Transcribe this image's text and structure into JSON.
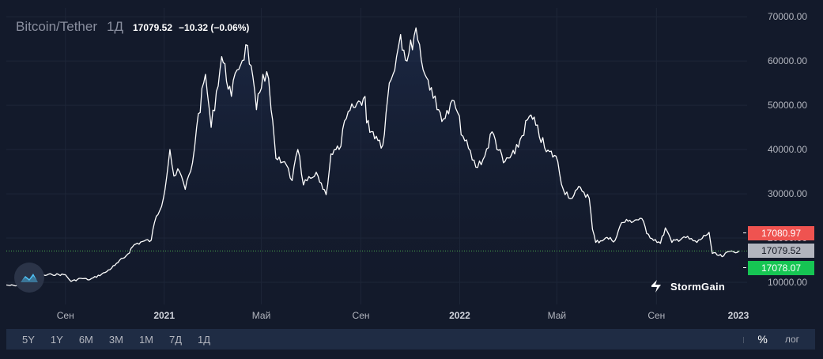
{
  "legend": {
    "symbol": "Bitcoin/Tether",
    "timeframe": "1Д",
    "price": "17079.52",
    "change": "−10.32 (−0.06%)"
  },
  "price_tags": {
    "high": "17080.97",
    "last": "17079.52",
    "low": "17078.07"
  },
  "brand": {
    "name": "StormGain"
  },
  "toolbar": {
    "ranges": [
      "5Y",
      "1Y",
      "6M",
      "3M",
      "1M",
      "7Д",
      "1Д"
    ],
    "percent": "%",
    "log": "лог"
  },
  "colors": {
    "background": "#131a2b",
    "line": "#ffffff",
    "high_tag": "#ef5350",
    "last_tag": "#b2b5be",
    "low_tag": "#16c553",
    "last_price_line": "#4caf50"
  },
  "chart_data": {
    "type": "area",
    "series_points": [
      [
        "2020-06-20",
        9400
      ],
      [
        "2020-07-01",
        9200
      ],
      [
        "2020-07-10",
        9300
      ],
      [
        "2020-07-20",
        9200
      ],
      [
        "2020-08-01",
        11400
      ],
      [
        "2020-08-15",
        11800
      ],
      [
        "2020-09-01",
        11700
      ],
      [
        "2020-09-08",
        10200
      ],
      [
        "2020-09-20",
        10900
      ],
      [
        "2020-10-01",
        10600
      ],
      [
        "2020-10-20",
        12200
      ],
      [
        "2020-11-01",
        13800
      ],
      [
        "2020-11-15",
        16000
      ],
      [
        "2020-11-25",
        18500
      ],
      [
        "2020-12-05",
        19200
      ],
      [
        "2020-12-16",
        19500
      ],
      [
        "2020-12-20",
        23500
      ],
      [
        "2020-12-31",
        29000
      ],
      [
        "2021-01-08",
        40000
      ],
      [
        "2021-01-13",
        34000
      ],
      [
        "2021-01-20",
        35000
      ],
      [
        "2021-01-27",
        31000
      ],
      [
        "2021-02-05",
        37000
      ],
      [
        "2021-02-10",
        45000
      ],
      [
        "2021-02-21",
        57000
      ],
      [
        "2021-02-28",
        45000
      ],
      [
        "2021-03-13",
        61000
      ],
      [
        "2021-03-25",
        52000
      ],
      [
        "2021-04-01",
        58000
      ],
      [
        "2021-04-14",
        63500
      ],
      [
        "2021-04-25",
        49000
      ],
      [
        "2021-05-03",
        57000
      ],
      [
        "2021-05-10",
        56000
      ],
      [
        "2021-05-13",
        49000
      ],
      [
        "2021-05-19",
        38000
      ],
      [
        "2021-05-25",
        37000
      ],
      [
        "2021-06-01",
        36500
      ],
      [
        "2021-06-08",
        33000
      ],
      [
        "2021-06-15",
        40000
      ],
      [
        "2021-06-22",
        32000
      ],
      [
        "2021-07-01",
        33500
      ],
      [
        "2021-07-10",
        34000
      ],
      [
        "2021-07-20",
        29800
      ],
      [
        "2021-07-26",
        39000
      ],
      [
        "2021-08-05",
        40000
      ],
      [
        "2021-08-14",
        47000
      ],
      [
        "2021-08-23",
        49500
      ],
      [
        "2021-09-06",
        52000
      ],
      [
        "2021-09-08",
        46000
      ],
      [
        "2021-09-20",
        43000
      ],
      [
        "2021-09-28",
        41000
      ],
      [
        "2021-10-06",
        55000
      ],
      [
        "2021-10-15",
        61000
      ],
      [
        "2021-10-20",
        66000
      ],
      [
        "2021-10-28",
        60000
      ],
      [
        "2021-11-08",
        67500
      ],
      [
        "2021-11-19",
        57000
      ],
      [
        "2021-11-27",
        54000
      ],
      [
        "2021-12-04",
        49000
      ],
      [
        "2021-12-14",
        47000
      ],
      [
        "2021-12-25",
        51000
      ],
      [
        "2022-01-05",
        43000
      ],
      [
        "2022-01-21",
        36000
      ],
      [
        "2022-02-01",
        38500
      ],
      [
        "2022-02-10",
        44000
      ],
      [
        "2022-02-24",
        37000
      ],
      [
        "2022-03-10",
        39000
      ],
      [
        "2022-03-28",
        47500
      ],
      [
        "2022-04-05",
        45500
      ],
      [
        "2022-04-18",
        39500
      ],
      [
        "2022-04-30",
        38500
      ],
      [
        "2022-05-09",
        31000
      ],
      [
        "2022-05-20",
        29000
      ],
      [
        "2022-05-30",
        31500
      ],
      [
        "2022-06-10",
        29000
      ],
      [
        "2022-06-14",
        22000
      ],
      [
        "2022-06-18",
        19000
      ],
      [
        "2022-06-30",
        20000
      ],
      [
        "2022-07-12",
        19500
      ],
      [
        "2022-07-20",
        23500
      ],
      [
        "2022-07-28",
        23800
      ],
      [
        "2022-08-14",
        24400
      ],
      [
        "2022-08-20",
        21000
      ],
      [
        "2022-09-06",
        18800
      ],
      [
        "2022-09-12",
        22300
      ],
      [
        "2022-09-20",
        19000
      ],
      [
        "2022-10-05",
        20300
      ],
      [
        "2022-10-21",
        19000
      ],
      [
        "2022-11-05",
        21300
      ],
      [
        "2022-11-09",
        16500
      ],
      [
        "2022-11-21",
        15800
      ],
      [
        "2022-12-01",
        17000
      ],
      [
        "2022-12-12",
        17079.52
      ]
    ],
    "y_ticks": [
      "10000.00",
      "20000.00",
      "30000.00",
      "40000.00",
      "50000.00",
      "60000.00",
      "70000.00"
    ],
    "x_ticks": [
      {
        "label": "Сен",
        "date": "2020-09-01",
        "year": false
      },
      {
        "label": "2021",
        "date": "2021-01-01",
        "year": true
      },
      {
        "label": "Май",
        "date": "2021-05-01",
        "year": false
      },
      {
        "label": "Сен",
        "date": "2021-09-01",
        "year": false
      },
      {
        "label": "2022",
        "date": "2022-01-01",
        "year": true
      },
      {
        "label": "Май",
        "date": "2022-05-01",
        "year": false
      },
      {
        "label": "Сен",
        "date": "2022-09-01",
        "year": false
      },
      {
        "label": "2023",
        "date": "2023-01-01",
        "year": true
      }
    ],
    "ylim": [
      5000,
      72000
    ],
    "xlim": [
      "2020-06-20",
      "2022-12-22"
    ],
    "grid": true,
    "last_price_line": 17079.52
  }
}
